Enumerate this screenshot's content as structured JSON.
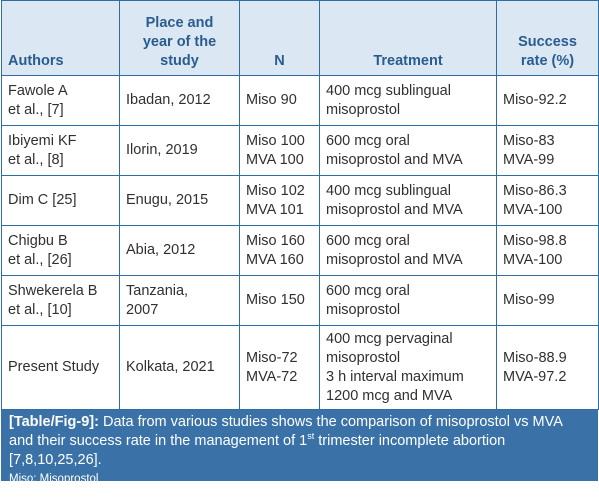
{
  "table": {
    "headers": {
      "authors": "Authors",
      "place_lines": [
        "Place and",
        "year of the",
        "study"
      ],
      "n": "N",
      "treatment": "Treatment",
      "success_lines": [
        "Success",
        "rate (%)"
      ]
    },
    "rows": [
      {
        "author": [
          "Fawole A",
          "et al., [7]"
        ],
        "place": [
          "Ibadan, 2012"
        ],
        "n": [
          "Miso 90"
        ],
        "treatment": [
          "400 mcg sublingual",
          "misoprostol"
        ],
        "success": [
          "Miso-92.2"
        ]
      },
      {
        "author": [
          "Ibiyemi KF",
          "et al., [8]"
        ],
        "place": [
          "Ilorin, 2019"
        ],
        "n": [
          "Miso 100",
          "MVA 100"
        ],
        "treatment": [
          "600 mcg oral",
          "misoprostol and MVA"
        ],
        "success": [
          "Miso-83",
          "MVA-99"
        ]
      },
      {
        "author": [
          "Dim C [25]"
        ],
        "place": [
          "Enugu, 2015"
        ],
        "n": [
          "Miso 102",
          "MVA 101"
        ],
        "treatment": [
          "400 mcg sublingual",
          "misoprostol and MVA"
        ],
        "success": [
          "Miso-86.3",
          "MVA-100"
        ]
      },
      {
        "author": [
          "Chigbu B",
          "et al., [26]"
        ],
        "place": [
          "Abia, 2012"
        ],
        "n": [
          "Miso 160",
          "MVA 160"
        ],
        "treatment": [
          "600 mcg oral",
          "misoprostol and MVA"
        ],
        "success": [
          "Miso-98.8",
          "MVA-100"
        ]
      },
      {
        "author": [
          "Shwekerela B",
          "et al., [10]"
        ],
        "place": [
          "Tanzania,",
          "2007"
        ],
        "n": [
          "Miso 150"
        ],
        "treatment": [
          "600 mcg oral",
          "misoprostol"
        ],
        "success": [
          "Miso-99"
        ]
      },
      {
        "author": [
          "Present Study"
        ],
        "place": [
          "Kolkata, 2021"
        ],
        "n": [
          "Miso-72",
          "MVA-72"
        ],
        "treatment": [
          "400 mcg pervaginal",
          "misoprostol",
          "3 h interval maximum",
          "1200 mcg and MVA"
        ],
        "success": [
          "Miso-88.9",
          "MVA-97.2"
        ]
      }
    ]
  },
  "caption": {
    "label": "[Table/Fig-9]:",
    "text_before_sup": " Data from various studies shows the comparison of misoprostol vs MVA and their success rate in the management of 1",
    "sup": "st",
    "text_after_sup": " trimester incomplete abortion [7,8,10,25,26].",
    "note": "Miso: Misoprostol"
  },
  "colors": {
    "header_bg": "#dbe7f3",
    "header_text": "#2a5d8f",
    "border": "#2f6ea5",
    "caption_bg": "#3a72a8"
  }
}
